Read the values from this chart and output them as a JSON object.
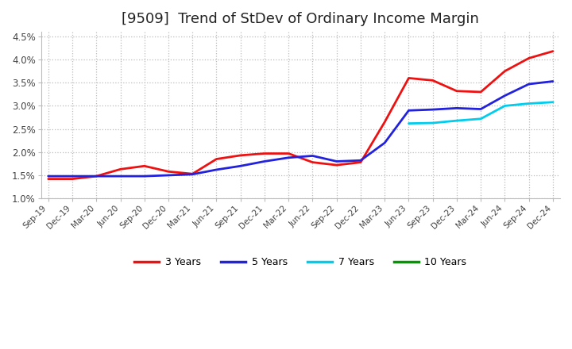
{
  "title": "[9509]  Trend of StDev of Ordinary Income Margin",
  "ylim": [
    0.01,
    0.046
  ],
  "yticks": [
    0.01,
    0.015,
    0.02,
    0.025,
    0.03,
    0.035,
    0.04,
    0.045
  ],
  "ytick_labels": [
    "1.0%",
    "1.5%",
    "2.0%",
    "2.5%",
    "3.0%",
    "3.5%",
    "4.0%",
    "4.5%"
  ],
  "x_labels": [
    "Sep-19",
    "Dec-19",
    "Mar-20",
    "Jun-20",
    "Sep-20",
    "Dec-20",
    "Mar-21",
    "Jun-21",
    "Sep-21",
    "Dec-21",
    "Mar-22",
    "Jun-22",
    "Sep-22",
    "Dec-22",
    "Mar-23",
    "Jun-23",
    "Sep-23",
    "Dec-23",
    "Mar-24",
    "Jun-24",
    "Sep-24",
    "Dec-24"
  ],
  "series": {
    "3 Years": {
      "color": "#ee1111",
      "data": [
        0.0142,
        0.0142,
        0.0148,
        0.0163,
        0.017,
        0.0158,
        0.0153,
        0.0185,
        0.0193,
        0.0197,
        0.0197,
        0.0178,
        0.0172,
        0.0178,
        0.0265,
        0.036,
        0.0355,
        0.0332,
        0.033,
        0.0375,
        0.0403,
        0.0418
      ]
    },
    "5 Years": {
      "color": "#2222dd",
      "data": [
        0.0148,
        0.0148,
        0.0148,
        0.0148,
        0.0148,
        0.015,
        0.0152,
        0.0162,
        0.017,
        0.018,
        0.0188,
        0.0192,
        0.018,
        0.0182,
        0.022,
        0.029,
        0.0292,
        0.0295,
        0.0293,
        0.0322,
        0.0347,
        0.0353
      ]
    },
    "7 Years": {
      "color": "#00ccee",
      "data": [
        null,
        null,
        null,
        null,
        null,
        null,
        null,
        null,
        null,
        null,
        null,
        null,
        null,
        null,
        null,
        0.0262,
        0.0263,
        0.0268,
        0.0272,
        0.03,
        0.0305,
        0.0308
      ]
    },
    "10 Years": {
      "color": "#009900",
      "data": [
        null,
        null,
        null,
        null,
        null,
        null,
        null,
        null,
        null,
        null,
        null,
        null,
        null,
        null,
        null,
        null,
        null,
        null,
        null,
        null,
        null,
        null
      ]
    }
  },
  "background_color": "#ffffff",
  "grid_color": "#bbbbbb",
  "title_fontsize": 13,
  "legend_colors": [
    "#ee1111",
    "#2222dd",
    "#00ccee",
    "#009900"
  ],
  "legend_labels": [
    "3 Years",
    "5 Years",
    "7 Years",
    "10 Years"
  ]
}
